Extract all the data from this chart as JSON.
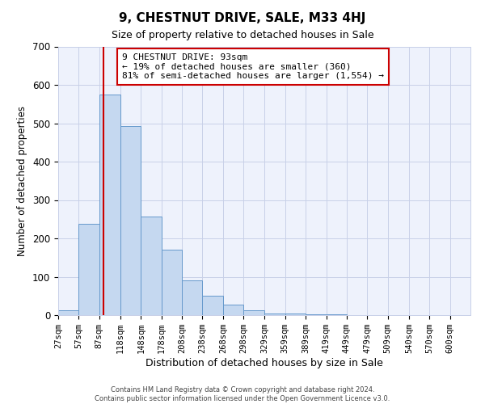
{
  "title": "9, CHESTNUT DRIVE, SALE, M33 4HJ",
  "subtitle": "Size of property relative to detached houses in Sale",
  "xlabel": "Distribution of detached houses by size in Sale",
  "ylabel": "Number of detached properties",
  "annotation_line1": "9 CHESTNUT DRIVE: 93sqm",
  "annotation_line2": "← 19% of detached houses are smaller (360)",
  "annotation_line3": "81% of semi-detached houses are larger (1,554) →",
  "property_size": 93,
  "bin_edges": [
    27,
    57,
    87,
    118,
    148,
    178,
    208,
    238,
    268,
    298,
    329,
    359,
    389,
    419,
    449,
    479,
    509,
    540,
    570,
    600,
    630
  ],
  "bar_values": [
    12,
    238,
    575,
    492,
    257,
    170,
    90,
    50,
    27,
    12,
    5,
    4,
    3,
    2,
    1,
    1,
    1,
    0,
    0,
    1
  ],
  "bar_color": "#c5d8f0",
  "bar_edgecolor": "#6699cc",
  "redline_color": "#cc0000",
  "background_color": "#eef2fc",
  "grid_color": "#c8d0e8",
  "box_edgecolor": "#cc0000",
  "footer_line1": "Contains HM Land Registry data © Crown copyright and database right 2024.",
  "footer_line2": "Contains public sector information licensed under the Open Government Licence v3.0.",
  "ylim": [
    0,
    700
  ],
  "yticks": [
    0,
    100,
    200,
    300,
    400,
    500,
    600,
    700
  ]
}
